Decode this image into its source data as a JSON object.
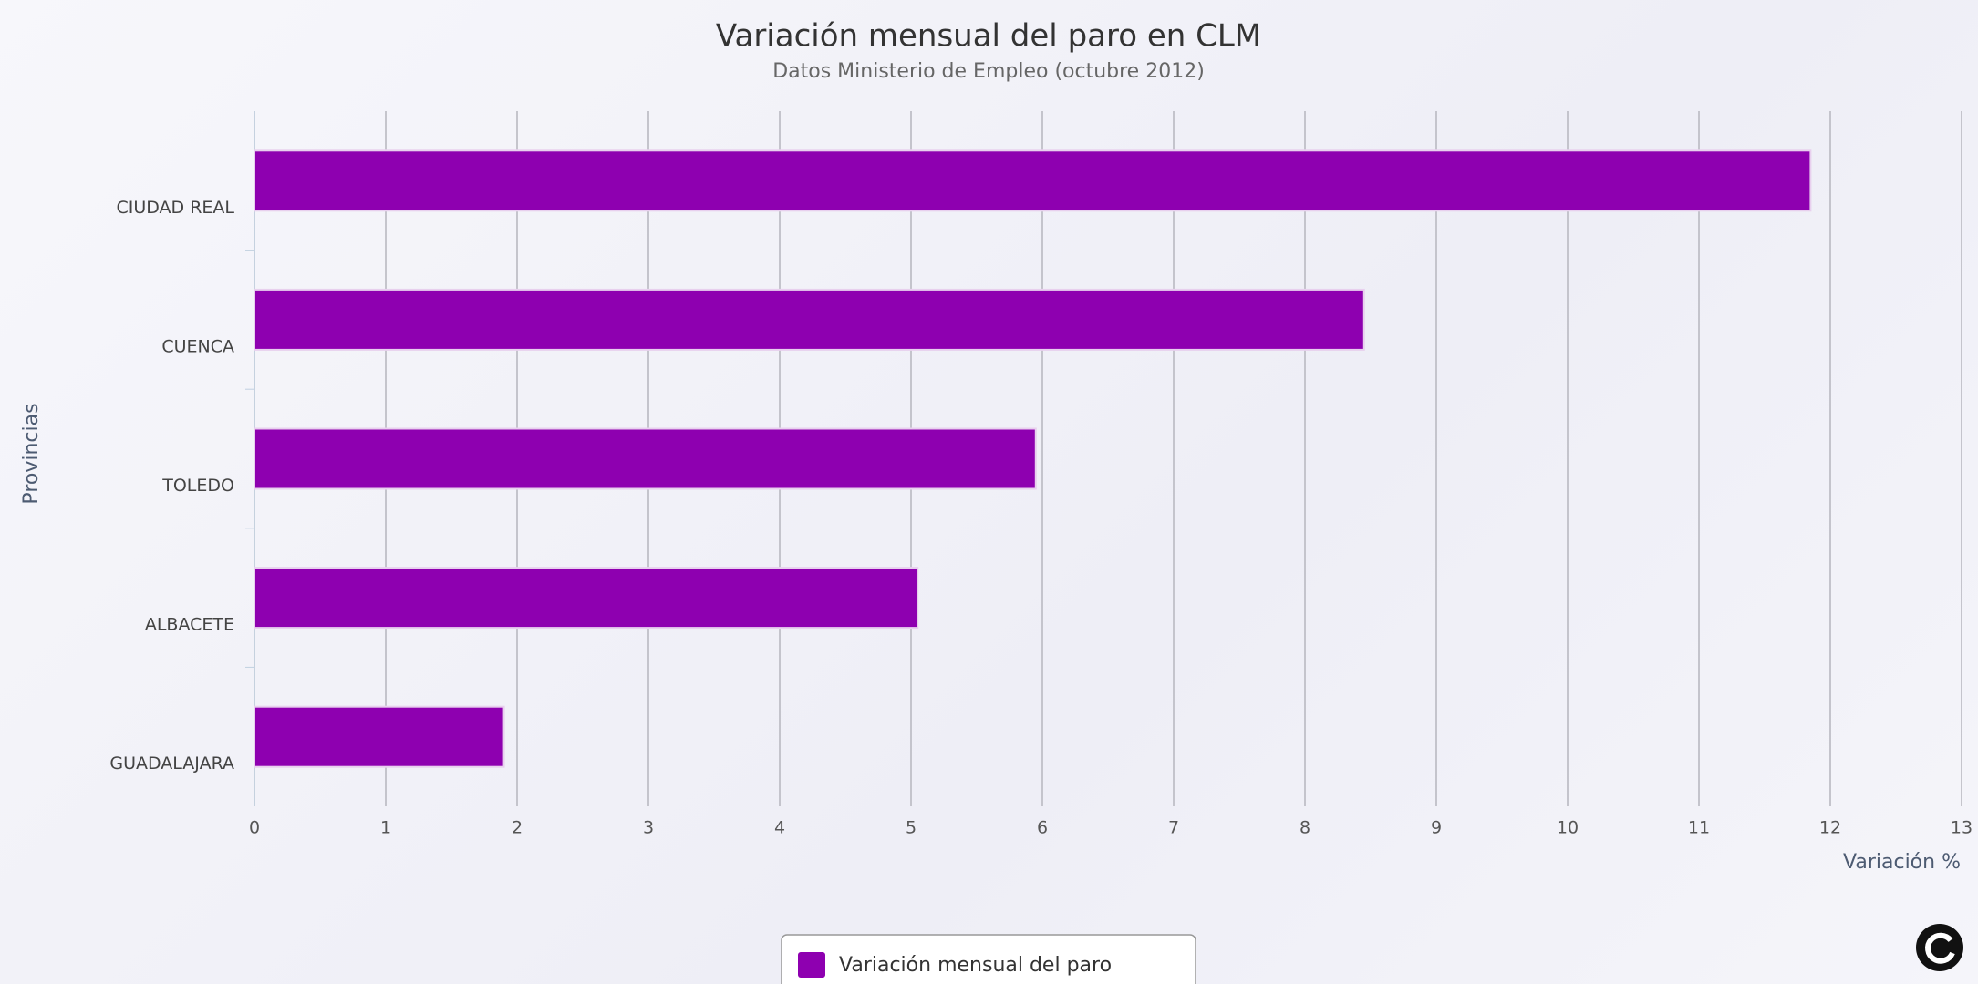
{
  "chart_data": {
    "type": "bar",
    "orientation": "horizontal",
    "title": "Variación mensual del paro en CLM",
    "subtitle": "Datos Ministerio de Empleo (octubre 2012)",
    "x_label": "Variación %",
    "y_label": "Provincias",
    "categories": [
      "CIUDAD REAL",
      "CUENCA",
      "TOLEDO",
      "ALBACETE",
      "GUADALAJARA"
    ],
    "series": [
      {
        "name": "Variación mensual del paro",
        "color": "#8e00b0",
        "values": [
          11.85,
          8.45,
          5.95,
          5.05,
          1.9
        ]
      }
    ],
    "xlim": [
      0,
      13
    ],
    "xticks": [
      0,
      1,
      2,
      3,
      4,
      5,
      6,
      7,
      8,
      9,
      10,
      11,
      12,
      13
    ],
    "grid": true,
    "legend": "bottom"
  }
}
